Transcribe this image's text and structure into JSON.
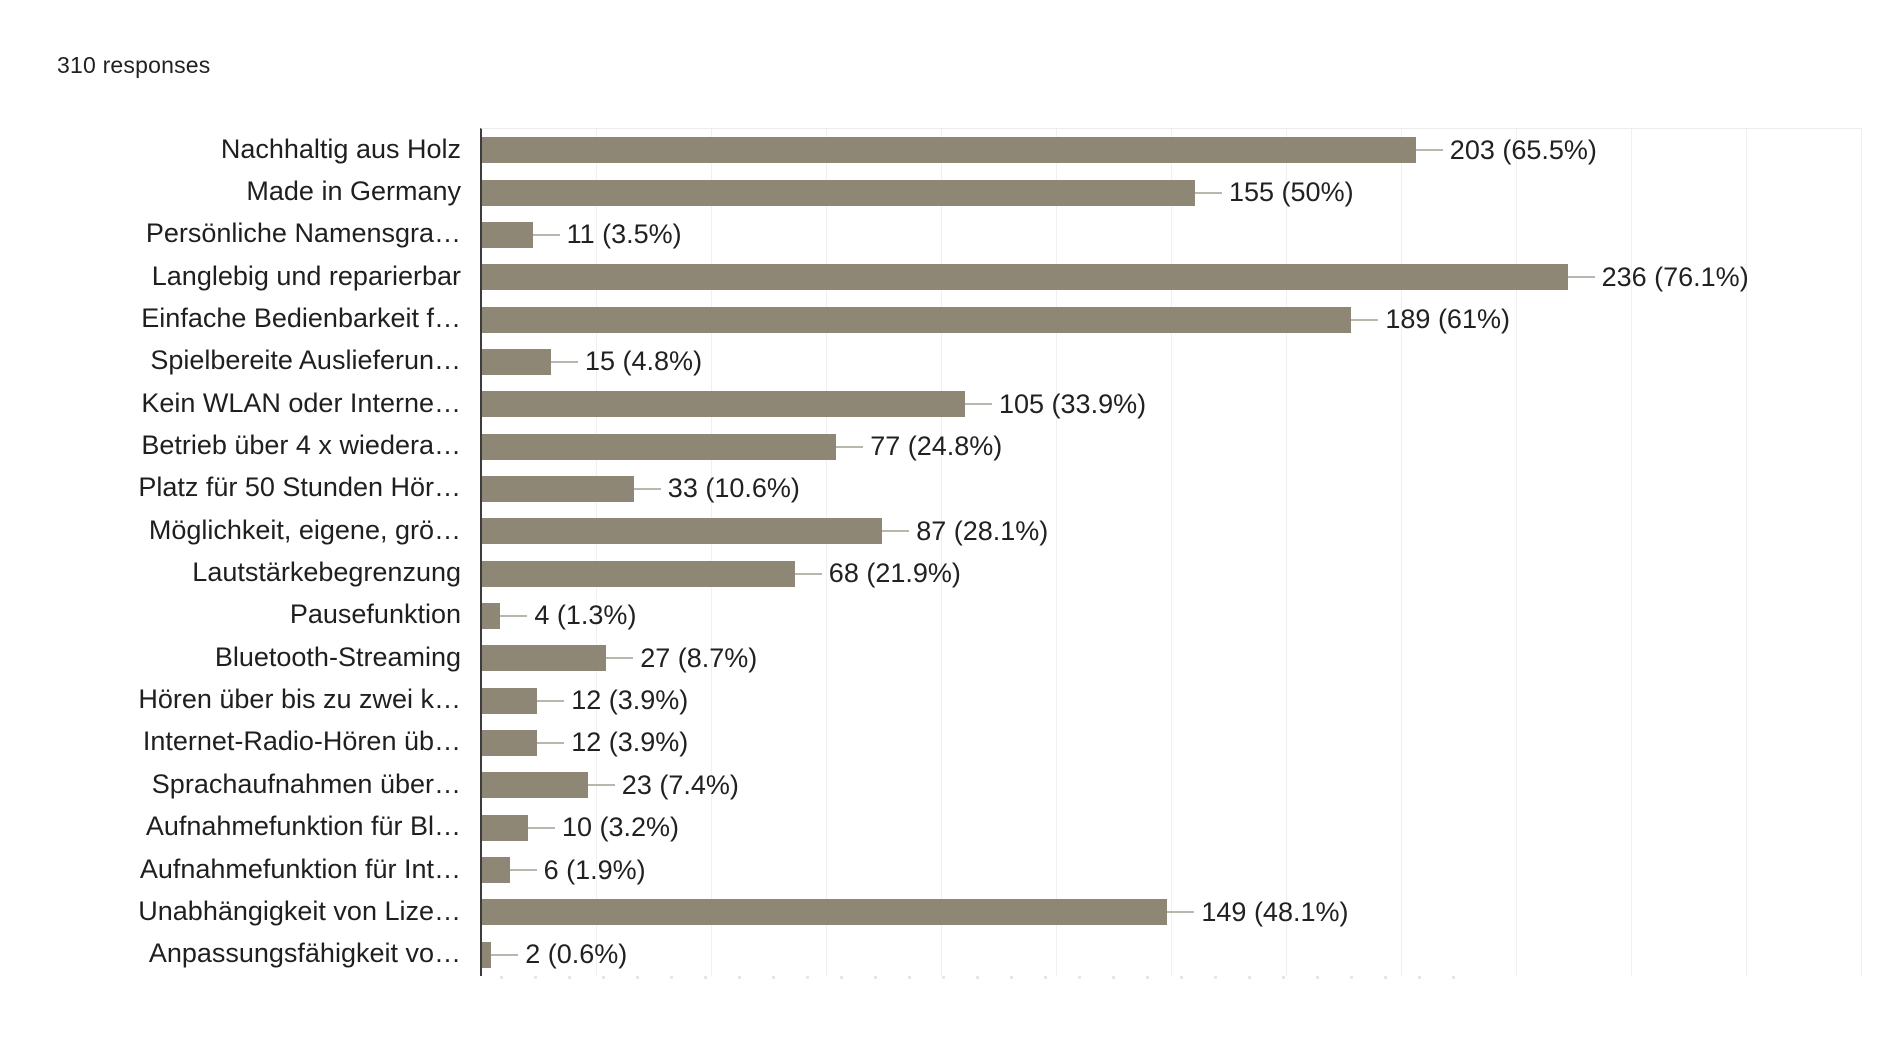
{
  "header": {
    "responses_label": "310 responses"
  },
  "chart_data": {
    "type": "bar",
    "orientation": "horizontal",
    "title": "",
    "xlabel": "",
    "ylabel": "",
    "xlim": [
      0,
      300
    ],
    "gridline_step": 25,
    "grid": true,
    "legend": "none",
    "total_responses": 310,
    "bar_color": "#8e8776",
    "axis_color": "#3c3c3c",
    "gridline_color": "#f0f0f0",
    "stem_color": "#b9b6ae",
    "text_color": "#212121",
    "categories": [
      "Nachhaltig aus Holz",
      "Made in Germany",
      "Persönliche Namensgra…",
      "Langlebig und reparierbar",
      "Einfache Bedienbarkeit f…",
      "Spielbereite Auslieferun…",
      "Kein WLAN oder Interne…",
      "Betrieb über 4 x wiedera…",
      "Platz für 50 Stunden Hör…",
      "Möglichkeit, eigene, grö…",
      "Lautstärkebegrenzung",
      "Pausefunktion",
      "Bluetooth-Streaming",
      "Hören über bis zu zwei k…",
      "Internet-Radio-Hören üb…",
      "Sprachaufnahmen über…",
      "Aufnahmefunktion für Bl…",
      "Aufnahmefunktion für Int…",
      "Unabhängigkeit von Lize…",
      "Anpassungsfähigkeit vo…"
    ],
    "values": [
      203,
      155,
      11,
      236,
      189,
      15,
      105,
      77,
      33,
      87,
      68,
      4,
      27,
      12,
      12,
      23,
      10,
      6,
      149,
      2
    ],
    "value_labels": [
      "203 (65.5%)",
      "155 (50%)",
      "11 (3.5%)",
      "236 (76.1%)",
      "189 (61%)",
      "15 (4.8%)",
      "105 (33.9%)",
      "77 (24.8%)",
      "33 (10.6%)",
      "87 (28.1%)",
      "68 (21.9%)",
      "4 (1.3%)",
      "27 (8.7%)",
      "12 (3.9%)",
      "12 (3.9%)",
      "23 (7.4%)",
      "10 (3.2%)",
      "6 (1.9%)",
      "149 (48.1%)",
      "2 (0.6%)"
    ]
  }
}
